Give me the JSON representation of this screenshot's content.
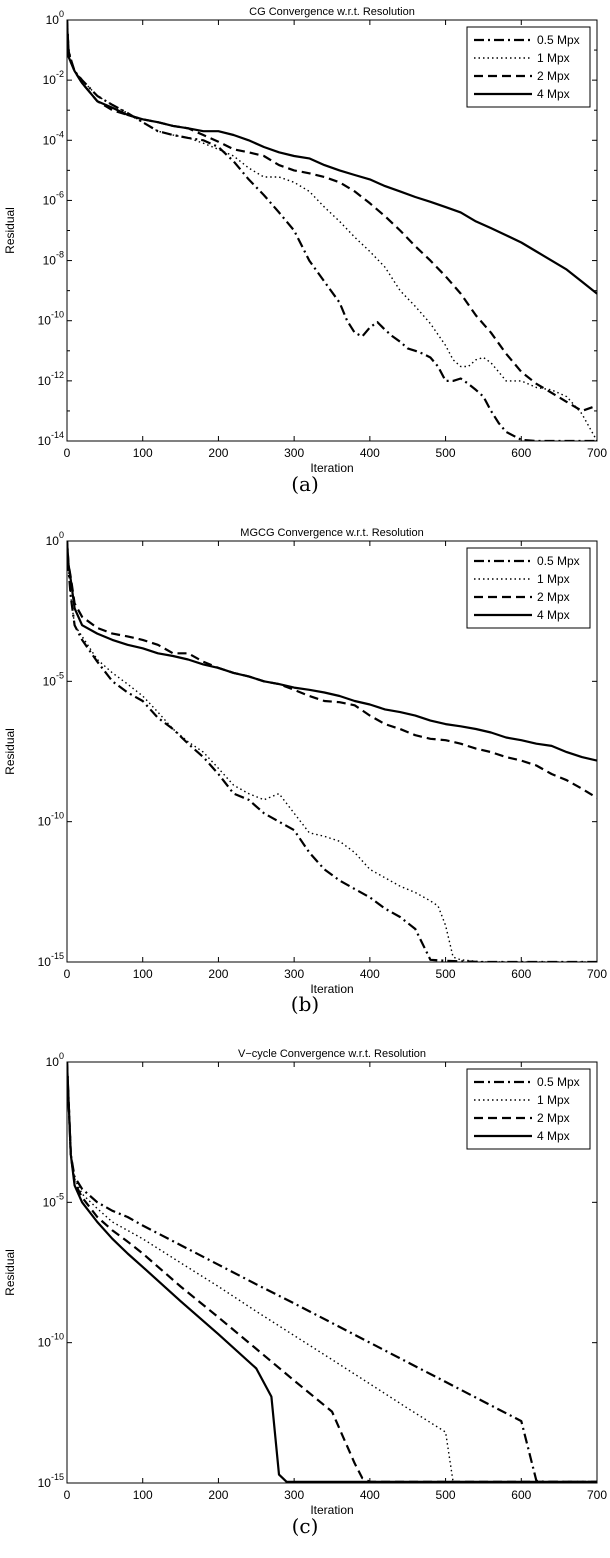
{
  "panel_labels": [
    "(a)",
    "(b)",
    "(c)"
  ],
  "chart_data": [
    {
      "type": "line",
      "title": "CG Convergence w.r.t. Resolution",
      "xlabel": "Iteration",
      "ylabel": "Residual",
      "xlim": [
        0,
        700
      ],
      "ylim": [
        1e-14,
        1
      ],
      "yscale": "log",
      "xticks": [
        "0",
        "100",
        "200",
        "300",
        "400",
        "500",
        "600",
        "700"
      ],
      "yticks": [
        {
          "value": 1,
          "base": "10",
          "exp": "0"
        },
        {
          "value": 0.01,
          "base": "10",
          "exp": "-2"
        },
        {
          "value": 0.0001,
          "base": "10",
          "exp": "-4"
        },
        {
          "value": 1e-06,
          "base": "10",
          "exp": "-6"
        },
        {
          "value": 1e-08,
          "base": "10",
          "exp": "-8"
        },
        {
          "value": 1e-10,
          "base": "10",
          "exp": "-10"
        },
        {
          "value": 1e-12,
          "base": "10",
          "exp": "-12"
        },
        {
          "value": 1e-14,
          "base": "10",
          "exp": "-14"
        }
      ],
      "grid": false,
      "legend": "top-right",
      "series": [
        {
          "name": "0.5 Mpx",
          "dash": "dashdot",
          "x": [
            0,
            2,
            5,
            10,
            20,
            40,
            60,
            80,
            100,
            120,
            140,
            160,
            180,
            200,
            220,
            240,
            260,
            280,
            300,
            320,
            340,
            360,
            370,
            380,
            390,
            400,
            410,
            420,
            430,
            440,
            450,
            460,
            470,
            480,
            490,
            500,
            510,
            520,
            530,
            540,
            550,
            560,
            570,
            580,
            600,
            620,
            640,
            660,
            680,
            700
          ],
          "y": [
            1,
            0.1,
            0.05,
            0.02,
            0.01,
            0.003,
            0.0015,
            0.0008,
            0.0004,
            0.0002,
            0.00015,
            0.00012,
            0.0001,
            6e-05,
            2e-05,
            5e-06,
            1.5e-06,
            4e-07,
            1e-07,
            1e-08,
            2e-09,
            4e-10,
            1e-10,
            4e-11,
            3e-11,
            6e-11,
            9e-11,
            5e-11,
            3e-11,
            2e-11,
            1.2e-11,
            1e-11,
            8e-12,
            6e-12,
            3e-12,
            1e-12,
            1e-12,
            1.2e-12,
            8e-13,
            5e-13,
            3e-13,
            1e-13,
            4e-14,
            2e-14,
            1.1e-14,
            1e-14,
            1e-14,
            1e-14,
            1e-14,
            1e-14
          ]
        },
        {
          "name": "1 Mpx",
          "dash": "dotted",
          "x": [
            0,
            2,
            5,
            10,
            20,
            40,
            60,
            80,
            100,
            120,
            140,
            160,
            180,
            200,
            220,
            240,
            260,
            280,
            300,
            320,
            340,
            360,
            380,
            400,
            420,
            440,
            460,
            480,
            500,
            510,
            520,
            530,
            540,
            550,
            560,
            570,
            580,
            590,
            600,
            620,
            640,
            660,
            680,
            700
          ],
          "y": [
            1,
            0.1,
            0.05,
            0.02,
            0.01,
            0.003,
            0.0015,
            0.0008,
            0.0004,
            0.0002,
            0.00015,
            0.00012,
            8e-05,
            5e-05,
            3e-05,
            1.2e-05,
            6e-06,
            6e-06,
            4e-06,
            2e-06,
            6e-07,
            2e-07,
            6e-08,
            2e-08,
            6e-09,
            1e-09,
            3e-10,
            8e-11,
            1.5e-11,
            5e-12,
            3e-12,
            3e-12,
            5e-12,
            6e-12,
            4e-12,
            2e-12,
            1e-12,
            1e-12,
            1e-12,
            6e-13,
            5e-13,
            3e-13,
            8e-14,
            1e-14
          ]
        },
        {
          "name": "2 Mpx",
          "dash": "dashed",
          "x": [
            0,
            2,
            5,
            10,
            20,
            40,
            60,
            80,
            100,
            120,
            140,
            160,
            180,
            200,
            220,
            240,
            260,
            280,
            300,
            320,
            340,
            360,
            380,
            400,
            420,
            440,
            460,
            480,
            500,
            520,
            540,
            560,
            580,
            600,
            620,
            640,
            660,
            680,
            700
          ],
          "y": [
            1,
            0.1,
            0.04,
            0.02,
            0.008,
            0.002,
            0.001,
            0.0007,
            0.0005,
            0.0004,
            0.0003,
            0.00025,
            0.00015,
            9e-05,
            5e-05,
            4e-05,
            3e-05,
            1.5e-05,
            1e-05,
            8e-06,
            6e-06,
            4e-06,
            2e-06,
            8e-07,
            3e-07,
            1e-07,
            3e-08,
            1e-08,
            3e-09,
            8e-10,
            1.5e-10,
            4e-11,
            8e-12,
            2e-12,
            8e-13,
            4e-13,
            2e-13,
            1e-13,
            1.5e-13
          ]
        },
        {
          "name": "4 Mpx",
          "dash": "solid",
          "x": [
            0,
            2,
            5,
            10,
            20,
            40,
            60,
            80,
            100,
            120,
            140,
            160,
            180,
            200,
            220,
            240,
            260,
            280,
            300,
            320,
            340,
            360,
            380,
            400,
            420,
            440,
            460,
            480,
            500,
            520,
            540,
            560,
            580,
            600,
            620,
            640,
            660,
            680,
            700
          ],
          "y": [
            1,
            0.06,
            0.04,
            0.02,
            0.008,
            0.002,
            0.0012,
            0.0007,
            0.0005,
            0.0004,
            0.0003,
            0.00025,
            0.0002,
            0.0002,
            0.00015,
            0.0001,
            6e-05,
            4e-05,
            3e-05,
            2.5e-05,
            1.5e-05,
            1e-05,
            7e-06,
            5e-06,
            3e-06,
            2e-06,
            1.3e-06,
            9e-07,
            6e-07,
            4e-07,
            2e-07,
            1.2e-07,
            7e-08,
            4e-08,
            2e-08,
            1e-08,
            5e-09,
            2e-09,
            8e-10
          ]
        }
      ]
    },
    {
      "type": "line",
      "title": "MGCG Convergence w.r.t. Resolution",
      "xlabel": "Iteration",
      "ylabel": "Residual",
      "xlim": [
        0,
        700
      ],
      "ylim": [
        1e-15,
        1
      ],
      "yscale": "log",
      "xticks": [
        "0",
        "100",
        "200",
        "300",
        "400",
        "500",
        "600",
        "700"
      ],
      "yticks": [
        {
          "value": 1,
          "base": "10",
          "exp": "0"
        },
        {
          "value": 1e-05,
          "base": "10",
          "exp": "-5"
        },
        {
          "value": 1e-10,
          "base": "10",
          "exp": "-10"
        },
        {
          "value": 1e-15,
          "base": "10",
          "exp": "-15"
        }
      ],
      "grid": false,
      "legend": "top-right",
      "series": [
        {
          "name": "0.5 Mpx",
          "dash": "dashdot",
          "x": [
            0,
            2,
            5,
            10,
            20,
            40,
            60,
            80,
            100,
            120,
            140,
            160,
            180,
            200,
            220,
            240,
            260,
            280,
            300,
            320,
            340,
            360,
            380,
            400,
            420,
            440,
            460,
            480,
            500,
            550,
            600,
            650,
            700
          ],
          "y": [
            1,
            0.1,
            0.01,
            0.001,
            0.0003,
            5e-05,
            1e-05,
            4e-06,
            2e-06,
            5e-07,
            2e-07,
            6e-08,
            2e-08,
            5e-09,
            1e-09,
            6e-10,
            2e-10,
            1e-10,
            5e-11,
            8e-12,
            2e-12,
            8e-13,
            4e-13,
            2e-13,
            8e-14,
            4e-14,
            1.5e-14,
            1.2e-15,
            1.1e-15,
            1e-15,
            1e-15,
            1e-15,
            1e-15
          ]
        },
        {
          "name": "1 Mpx",
          "dash": "dotted",
          "x": [
            0,
            2,
            5,
            10,
            20,
            40,
            60,
            80,
            100,
            120,
            140,
            160,
            180,
            200,
            220,
            240,
            260,
            280,
            300,
            320,
            340,
            360,
            380,
            400,
            420,
            440,
            460,
            480,
            490,
            500,
            510,
            520,
            550,
            600,
            650,
            700
          ],
          "y": [
            1,
            0.1,
            0.01,
            0.001,
            0.0004,
            6e-05,
            2e-05,
            8e-06,
            3e-06,
            8e-07,
            2e-07,
            7e-08,
            3e-08,
            8e-09,
            2e-09,
            1e-09,
            6e-10,
            1e-09,
            2e-10,
            4e-11,
            3e-11,
            2e-11,
            8e-12,
            2e-12,
            1e-12,
            5e-13,
            3e-13,
            1.5e-13,
            1e-13,
            2e-14,
            1.5e-15,
            1.2e-15,
            1e-15,
            1e-15,
            1e-15,
            1e-15
          ]
        },
        {
          "name": "2 Mpx",
          "dash": "dashed",
          "x": [
            0,
            2,
            5,
            10,
            20,
            40,
            60,
            80,
            100,
            120,
            140,
            160,
            180,
            200,
            220,
            240,
            260,
            280,
            300,
            320,
            340,
            360,
            380,
            400,
            420,
            440,
            460,
            480,
            500,
            520,
            540,
            560,
            580,
            600,
            620,
            640,
            660,
            680,
            700
          ],
          "y": [
            1,
            0.15,
            0.05,
            0.006,
            0.002,
            0.0008,
            0.0005,
            0.0004,
            0.0003,
            0.0002,
            0.0001,
            0.0001,
            5e-05,
            3e-05,
            2e-05,
            1.5e-05,
            1e-05,
            8e-06,
            5e-06,
            3e-06,
            2e-06,
            1.8e-06,
            1.4e-06,
            6e-07,
            3e-07,
            2e-07,
            1.2e-07,
            9e-08,
            8e-08,
            6e-08,
            4e-08,
            3e-08,
            2e-08,
            1.5e-08,
            1e-08,
            5e-09,
            3e-09,
            1.5e-09,
            7e-10
          ]
        },
        {
          "name": "4 Mpx",
          "dash": "solid",
          "x": [
            0,
            2,
            5,
            10,
            20,
            40,
            60,
            80,
            100,
            120,
            140,
            160,
            180,
            200,
            220,
            240,
            260,
            280,
            300,
            320,
            340,
            360,
            380,
            400,
            420,
            440,
            460,
            480,
            500,
            520,
            540,
            560,
            580,
            600,
            620,
            640,
            660,
            680,
            700
          ],
          "y": [
            1,
            0.15,
            0.04,
            0.004,
            0.001,
            0.0005,
            0.0003,
            0.0002,
            0.00015,
            0.0001,
            8e-05,
            6e-05,
            4e-05,
            3e-05,
            2e-05,
            1.5e-05,
            1e-05,
            8e-06,
            6e-06,
            5e-06,
            4e-06,
            3e-06,
            2e-06,
            1.5e-06,
            1e-06,
            8e-07,
            6e-07,
            4e-07,
            3e-07,
            2.5e-07,
            2e-07,
            1.5e-07,
            1e-07,
            8e-08,
            6e-08,
            5e-08,
            3e-08,
            2e-08,
            1.5e-08
          ]
        }
      ]
    },
    {
      "type": "line",
      "title": "V−cycle Convergence w.r.t. Resolution",
      "xlabel": "Iteration",
      "ylabel": "Residual",
      "xlim": [
        0,
        700
      ],
      "ylim": [
        1e-15,
        1
      ],
      "yscale": "log",
      "xticks": [
        "0",
        "100",
        "200",
        "300",
        "400",
        "500",
        "600",
        "700"
      ],
      "yticks": [
        {
          "value": 1,
          "base": "10",
          "exp": "0"
        },
        {
          "value": 1e-05,
          "base": "10",
          "exp": "-5"
        },
        {
          "value": 1e-10,
          "base": "10",
          "exp": "-10"
        },
        {
          "value": 1e-15,
          "base": "10",
          "exp": "-15"
        }
      ],
      "grid": false,
      "legend": "top-right",
      "series": [
        {
          "name": "0.5 Mpx",
          "dash": "dashdot",
          "x": [
            0,
            2,
            5,
            10,
            20,
            40,
            60,
            80,
            100,
            150,
            200,
            250,
            300,
            350,
            400,
            450,
            500,
            550,
            600,
            620,
            630,
            650,
            700
          ],
          "y": [
            1,
            0.05,
            0.0005,
            8e-05,
            3e-05,
            1e-05,
            5e-06,
            3e-06,
            1.5e-06,
            3e-07,
            6e-08,
            1.2e-08,
            2.5e-09,
            5e-10,
            1e-10,
            2e-11,
            4e-12,
            8e-13,
            1.6e-13,
            1.2e-15,
            1.1e-15,
            1.1e-15,
            1.1e-15
          ]
        },
        {
          "name": "1 Mpx",
          "dash": "dotted",
          "x": [
            0,
            2,
            5,
            10,
            20,
            40,
            60,
            80,
            100,
            150,
            200,
            250,
            300,
            350,
            400,
            450,
            500,
            510,
            550,
            600,
            650,
            700
          ],
          "y": [
            1,
            0.05,
            0.0005,
            7e-05,
            2e-05,
            6e-06,
            2e-06,
            1e-06,
            5e-07,
            7e-08,
            1e-08,
            1.3e-09,
            1.8e-10,
            2.5e-11,
            3.4e-12,
            4.6e-13,
            6.5e-14,
            1.1e-15,
            1.1e-15,
            1.1e-15,
            1.1e-15,
            1.1e-15
          ]
        },
        {
          "name": "2 Mpx",
          "dash": "dashed",
          "x": [
            0,
            2,
            5,
            10,
            20,
            40,
            60,
            80,
            100,
            150,
            200,
            250,
            300,
            350,
            380,
            390,
            400,
            450,
            500,
            550,
            600,
            650,
            700
          ],
          "y": [
            1,
            0.05,
            0.0005,
            5e-05,
            1.5e-05,
            3e-06,
            1e-06,
            4e-07,
            1.5e-07,
            1e-08,
            8e-10,
            6e-11,
            4.5e-12,
            3.5e-13,
            5e-15,
            1.5e-15,
            1.1e-15,
            1.1e-15,
            1.1e-15,
            1.1e-15,
            1.1e-15,
            1.1e-15,
            1.1e-15
          ]
        },
        {
          "name": "4 Mpx",
          "dash": "solid",
          "x": [
            0,
            2,
            5,
            10,
            20,
            40,
            60,
            80,
            100,
            150,
            200,
            250,
            270,
            280,
            290,
            300,
            350,
            400,
            450,
            500,
            550,
            600,
            650,
            700
          ],
          "y": [
            1,
            0.05,
            0.0005,
            4e-05,
            1e-05,
            2e-06,
            5e-07,
            1.5e-07,
            5e-08,
            3e-09,
            2e-10,
            1.2e-11,
            1.2e-12,
            2e-15,
            1.1e-15,
            1.1e-15,
            1.1e-15,
            1.1e-15,
            1.1e-15,
            1.1e-15,
            1.1e-15,
            1.1e-15,
            1.1e-15,
            1.1e-15
          ]
        }
      ]
    }
  ]
}
